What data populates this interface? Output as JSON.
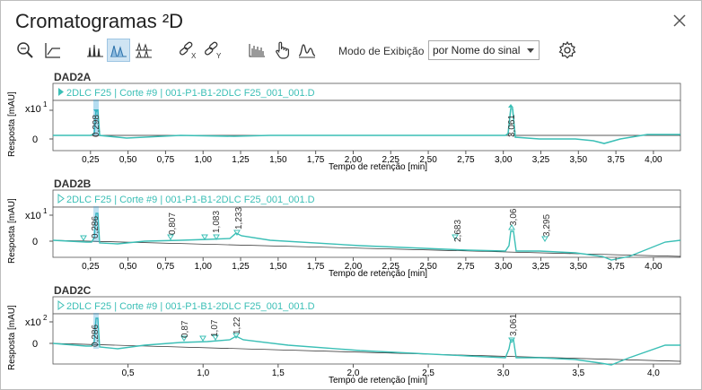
{
  "window": {
    "title": "Cromatogramas ²D"
  },
  "toolbar": {
    "icons": [
      "zoom-fit-icon",
      "axis-scale-icon",
      "overlay-view-icon",
      "stacked-view-icon",
      "split-view-icon",
      "unlink-x-icon",
      "unlink-y-icon",
      "bar-signal-icon",
      "hand-pointer-icon",
      "peak-icon",
      "settings-gear-icon"
    ],
    "mode_label": "Modo de Exibição",
    "mode_value": "por Nome do sinal"
  },
  "colors": {
    "trace": "#3bbfb6",
    "baseline": "#222222",
    "accent": "#2a9fd6"
  },
  "panels": [
    {
      "name": "DAD2A",
      "legend": "2DLC F25 | Corte #9 | 001-P1-B1-2DLC F25_001_001.D",
      "legend_filled": true,
      "y_multiplier": "x10",
      "y_exp": "1",
      "y_zero": "0",
      "y_label": "Resposta [mAU]",
      "x_label": "Tempo de retenção [min]",
      "x_ticks": [
        "0,25",
        "0,50",
        "0,75",
        "1,00",
        "1,25",
        "1,50",
        "1,75",
        "2,00",
        "2,25",
        "2,50",
        "2,75",
        "3,00",
        "3,25",
        "3,50",
        "3,75",
        "4,00"
      ],
      "peaks": [
        "0,298",
        "3,061"
      ]
    },
    {
      "name": "DAD2B",
      "legend": "2DLC F25 | Corte #9 | 001-P1-B1-2DLC F25_001_001.D",
      "legend_filled": false,
      "y_multiplier": "x10",
      "y_exp": "1",
      "y_zero": "0",
      "y_label": "Resposta [mAU]",
      "x_label": "Tempo de retenção [min]",
      "x_ticks": [
        "0,25",
        "0,50",
        "0,75",
        "1,00",
        "1,25",
        "1,50",
        "1,75",
        "2,00",
        "2,25",
        "2,50",
        "2,75",
        "3,00",
        "3,25",
        "3,50",
        "3,75",
        "4,00"
      ],
      "peaks": [
        "0,286",
        "0,807",
        "1,083",
        "1,233",
        "2,683",
        "3,06",
        "3,295"
      ]
    },
    {
      "name": "DAD2C",
      "legend": "2DLC F25 | Corte #9 | 001-P1-B1-2DLC F25_001_001.D",
      "legend_filled": false,
      "y_multiplier": "x10",
      "y_exp": "2",
      "y_zero": "0",
      "y_label": "Resposta [mAU]",
      "x_label": "Tempo de retenção [min]",
      "x_ticks": [
        "0,5",
        "1,0",
        "1,5",
        "2,0",
        "2,5",
        "3,0",
        "3,5",
        "4,0"
      ],
      "peaks": [
        "0,286",
        "0,87",
        "1,07",
        "1,22",
        "3,061"
      ]
    }
  ]
}
